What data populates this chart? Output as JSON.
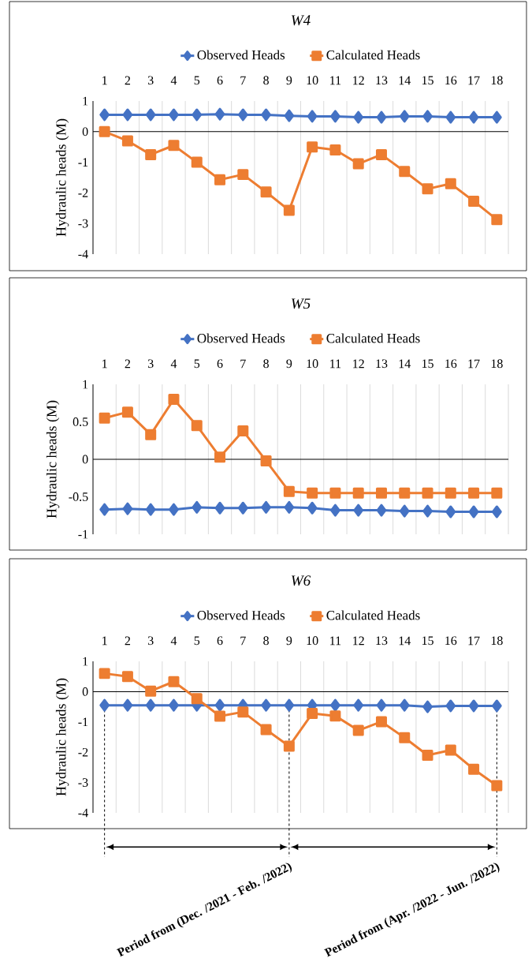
{
  "chart_data": [
    {
      "type": "line",
      "title": "W4",
      "ref_lines": [
        {
          "axis": "y",
          "value": 0,
          "color": "#000000"
        }
      ],
      "ylabel": "Hydraulic heads (M)",
      "x": [
        1,
        2,
        3,
        4,
        5,
        6,
        7,
        8,
        9,
        10,
        11,
        12,
        13,
        14,
        15,
        16,
        17,
        18
      ],
      "xlim": [
        0.5,
        18.5
      ],
      "xticks": [
        1,
        2,
        3,
        4,
        5,
        6,
        7,
        8,
        9,
        10,
        11,
        12,
        13,
        14,
        15,
        16,
        17,
        18
      ],
      "ylim": [
        -4,
        1
      ],
      "yticks": [
        -4,
        -3,
        -2,
        -1,
        0,
        1
      ],
      "grid": "x",
      "legend": "top",
      "series": [
        {
          "name": "Observed Heads",
          "color": "#4472c4",
          "marker": "diamond",
          "values": [
            0.55,
            0.55,
            0.55,
            0.55,
            0.55,
            0.57,
            0.55,
            0.55,
            0.52,
            0.5,
            0.5,
            0.47,
            0.47,
            0.5,
            0.5,
            0.47,
            0.47,
            0.47
          ]
        },
        {
          "name": "Calculated Heads",
          "color": "#ed7d31",
          "marker": "square",
          "values": [
            0,
            -0.3,
            -0.75,
            -0.45,
            -1,
            -1.57,
            -1.4,
            -1.97,
            -2.57,
            -0.5,
            -0.6,
            -1.05,
            -0.75,
            -1.3,
            -1.87,
            -1.7,
            -2.27,
            -2.87
          ]
        }
      ]
    },
    {
      "type": "line",
      "title": "W5",
      "ref_lines": [
        {
          "axis": "y",
          "value": 0,
          "color": "#000000"
        }
      ],
      "ylabel": "Hydraulic heads (M)",
      "x": [
        1,
        2,
        3,
        4,
        5,
        6,
        7,
        8,
        9,
        10,
        11,
        12,
        13,
        14,
        15,
        16,
        17,
        18
      ],
      "xlim": [
        0.5,
        18.5
      ],
      "xticks": [
        1,
        2,
        3,
        4,
        5,
        6,
        7,
        8,
        9,
        10,
        11,
        12,
        13,
        14,
        15,
        16,
        17,
        18
      ],
      "ylim": [
        -1,
        1
      ],
      "yticks": [
        -1,
        -0.5,
        0,
        0.5,
        1
      ],
      "grid": "x",
      "legend": "top",
      "series": [
        {
          "name": "Observed Heads",
          "color": "#4472c4",
          "marker": "diamond",
          "values": [
            -0.67,
            -0.66,
            -0.67,
            -0.67,
            -0.64,
            -0.65,
            -0.65,
            -0.64,
            -0.64,
            -0.65,
            -0.68,
            -0.68,
            -0.68,
            -0.69,
            -0.69,
            -0.7,
            -0.7,
            -0.7
          ]
        },
        {
          "name": "Calculated Heads",
          "color": "#ed7d31",
          "marker": "square",
          "values": [
            0.55,
            0.63,
            0.33,
            0.8,
            0.45,
            0.03,
            0.38,
            -0.02,
            -0.43,
            -0.45,
            -0.45,
            -0.45,
            -0.45,
            -0.45,
            -0.45,
            -0.45,
            -0.45,
            -0.45
          ]
        }
      ]
    },
    {
      "type": "line",
      "title": "W6",
      "ref_lines": [
        {
          "axis": "y",
          "value": 0,
          "color": "#000000"
        }
      ],
      "ylabel": "Hydraulic heads (M)",
      "x": [
        1,
        2,
        3,
        4,
        5,
        6,
        7,
        8,
        9,
        10,
        11,
        12,
        13,
        14,
        15,
        16,
        17,
        18
      ],
      "xlim": [
        0.5,
        18.5
      ],
      "xticks": [
        1,
        2,
        3,
        4,
        5,
        6,
        7,
        8,
        9,
        10,
        11,
        12,
        13,
        14,
        15,
        16,
        17,
        18
      ],
      "ylim": [
        -4,
        1
      ],
      "yticks": [
        -4,
        -3,
        -2,
        -1,
        0,
        1
      ],
      "grid": "x",
      "legend": "top",
      "series": [
        {
          "name": "Observed Heads",
          "color": "#4472c4",
          "marker": "diamond",
          "values": [
            -0.45,
            -0.45,
            -0.45,
            -0.45,
            -0.45,
            -0.45,
            -0.45,
            -0.45,
            -0.45,
            -0.45,
            -0.45,
            -0.45,
            -0.45,
            -0.45,
            -0.5,
            -0.47,
            -0.47,
            -0.47
          ]
        },
        {
          "name": "Calculated Heads",
          "color": "#ed7d31",
          "marker": "square",
          "values": [
            0.6,
            0.5,
            0.02,
            0.33,
            -0.23,
            -0.81,
            -0.67,
            -1.25,
            -1.8,
            -0.72,
            -0.8,
            -1.28,
            -0.99,
            -1.52,
            -2.1,
            -1.93,
            -2.56,
            -3.1
          ]
        }
      ],
      "annotations": [
        "**Period from (Dec. /2021 - Feb. /2022)**",
        "**Period from (Apr. /2022 - Jun. /2022)**"
      ]
    }
  ]
}
